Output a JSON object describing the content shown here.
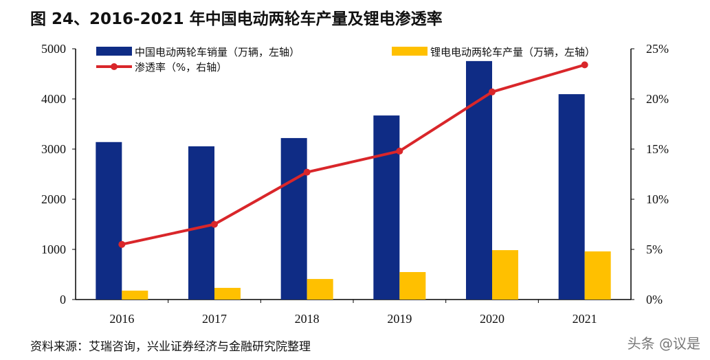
{
  "title": "图 24、2016-2021 年中国电动两轮车产量及锂电渗透率",
  "source": "资料来源：艾瑞咨询，兴业证券经济与金融研究院整理",
  "watermark": "头条 @议是",
  "chart_data": {
    "type": "bar",
    "categories": [
      "2016",
      "2017",
      "2018",
      "2019",
      "2020",
      "2021"
    ],
    "series": [
      {
        "name": "中国电动两轮车销量（万辆，左轴）",
        "type": "bar",
        "axis": "left",
        "color": "#0F2C85",
        "values": [
          3140,
          3055,
          3220,
          3670,
          4755,
          4095
        ]
      },
      {
        "name": "锂电电动两轮车产量（万辆，左轴）",
        "type": "bar",
        "axis": "left",
        "color": "#FFC000",
        "values": [
          178,
          233,
          410,
          548,
          985,
          960
        ]
      },
      {
        "name": "渗透率（%，右轴）",
        "type": "line",
        "axis": "right",
        "color": "#D9262A",
        "values": [
          5.5,
          7.5,
          12.7,
          14.8,
          20.7,
          23.4
        ]
      }
    ],
    "ylim_left": [
      0,
      5000
    ],
    "yticks_left": [
      "0",
      "1000",
      "2000",
      "3000",
      "4000",
      "5000"
    ],
    "ylim_right": [
      0,
      25
    ],
    "yticks_right": [
      "0%",
      "5%",
      "10%",
      "15%",
      "20%",
      "25%"
    ],
    "grid": false,
    "legend": "top"
  }
}
